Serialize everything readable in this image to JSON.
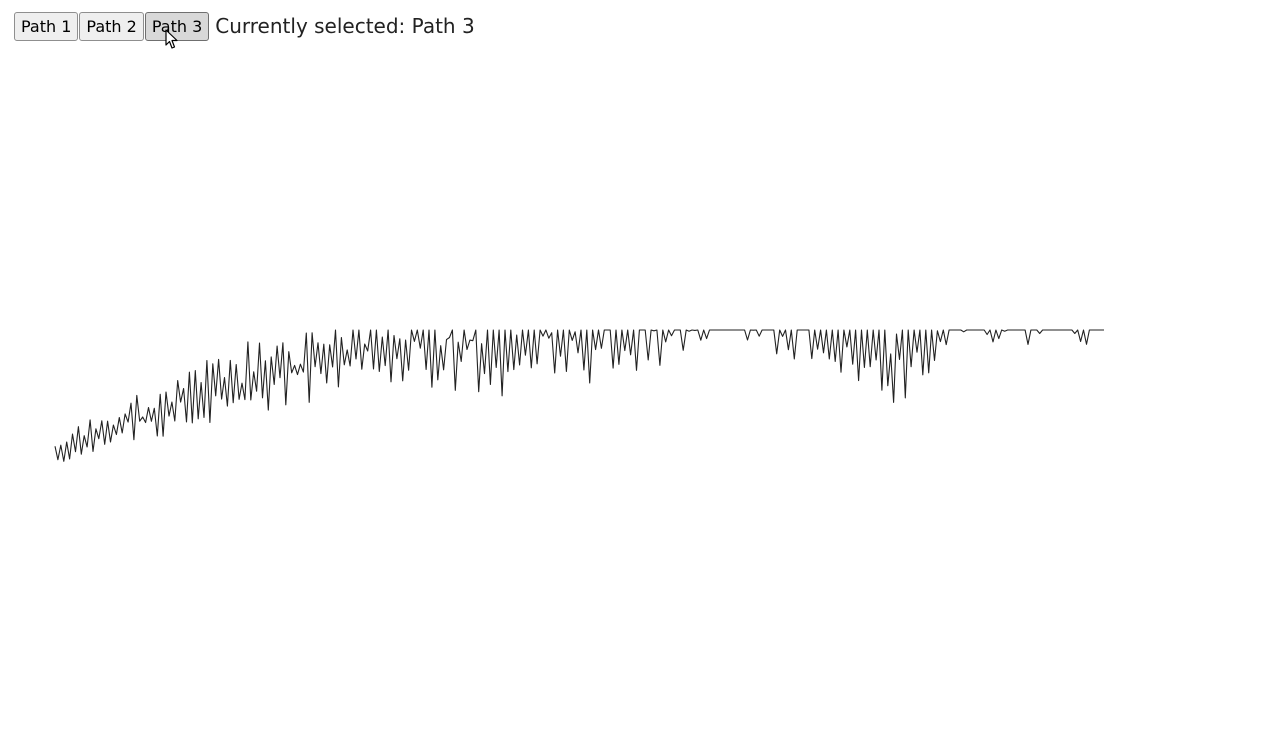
{
  "toolbar": {
    "buttons": [
      {
        "label": "Path 1",
        "active": false
      },
      {
        "label": "Path 2",
        "active": false
      },
      {
        "label": "Path 3",
        "active": true
      }
    ],
    "status_text": "Currently selected: Path 3"
  },
  "cursor": {
    "icon": "arrow-pointer-icon"
  },
  "line": {
    "color": "#222222",
    "seed": 3,
    "point_count": 360,
    "x_domain": [
      0,
      359
    ],
    "y_domain": [
      0,
      100
    ],
    "trend_anchors": [
      {
        "x": 0,
        "y": 10
      },
      {
        "x": 50,
        "y": 28
      },
      {
        "x": 110,
        "y": 42
      },
      {
        "x": 180,
        "y": 44
      },
      {
        "x": 240,
        "y": 54
      },
      {
        "x": 285,
        "y": 38
      },
      {
        "x": 320,
        "y": 56
      },
      {
        "x": 359,
        "y": 52
      }
    ],
    "noise_amplitude": [
      {
        "x": 0,
        "a": 4
      },
      {
        "x": 60,
        "a": 9
      },
      {
        "x": 140,
        "a": 13
      },
      {
        "x": 359,
        "a": 14
      }
    ]
  }
}
